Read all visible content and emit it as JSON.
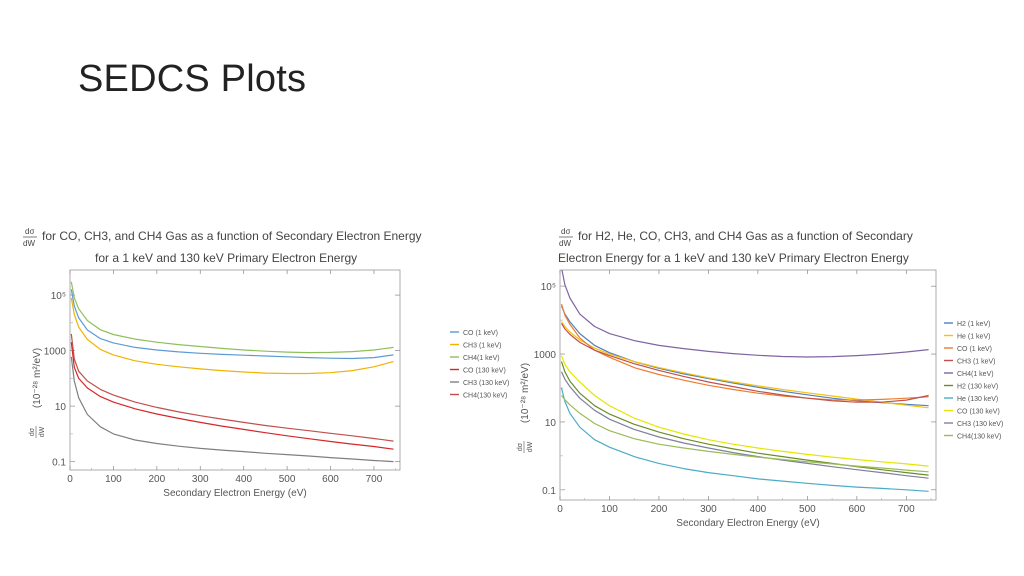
{
  "slide": {
    "title": "SEDCS Plots"
  },
  "chart_data": [
    {
      "type": "line",
      "title_fraction": {
        "numerator": "dσ",
        "denominator": "dW"
      },
      "title_line1": "for CO, CH3, and CH4 Gas as a function of Secondary Electron Energy",
      "title_line2": "for a 1 keV and 130 keV Primary Electron Energy",
      "xlabel": "Secondary Electron Energy (eV)",
      "ylabel_fraction": {
        "numerator": "dσ",
        "denominator": "dW"
      },
      "ylabel": "(10⁻²⁸ m²/eV)",
      "xlim": [
        0,
        760
      ],
      "ylim": [
        0.05,
        800000
      ],
      "yscale": "log",
      "xticks": [
        "0",
        "100",
        "200",
        "300",
        "400",
        "500",
        "600",
        "700"
      ],
      "yticks": [
        "0.1",
        "10",
        "1000",
        "10⁵"
      ],
      "ytick_values": [
        0.1,
        10,
        1000,
        100000
      ],
      "legend_position": "right",
      "x": [
        3,
        10,
        20,
        40,
        70,
        100,
        150,
        200,
        250,
        300,
        350,
        400,
        450,
        500,
        550,
        600,
        650,
        700,
        745
      ],
      "series": [
        {
          "name": "CO (1 keV)",
          "color": "#5b9bd5",
          "values": [
            160000,
            40000,
            15000,
            5500,
            2700,
            1900,
            1300,
            1050,
            900,
            800,
            730,
            680,
            640,
            600,
            560,
            530,
            520,
            560,
            700
          ]
        },
        {
          "name": "CH3 (1 keV)",
          "color": "#f0b400",
          "values": [
            80000,
            20000,
            7000,
            2500,
            1100,
            700,
            430,
            320,
            260,
            220,
            190,
            170,
            155,
            150,
            150,
            160,
            190,
            260,
            400
          ]
        },
        {
          "name": "CH4(1 keV)",
          "color": "#8fbf5a",
          "values": [
            300000,
            80000,
            32000,
            12000,
            5600,
            3800,
            2600,
            2000,
            1650,
            1400,
            1200,
            1050,
            950,
            880,
            850,
            860,
            920,
            1050,
            1300
          ]
        },
        {
          "name": "CO (130 keV)",
          "color": "#d62728",
          "values": [
            2000,
            250,
            100,
            45,
            22,
            14,
            8,
            5.2,
            3.6,
            2.6,
            1.9,
            1.45,
            1.1,
            0.85,
            0.67,
            0.53,
            0.43,
            0.35,
            0.28
          ]
        },
        {
          "name": "CH3 (130 keV)",
          "color": "#7f7f7f",
          "values": [
            600,
            80,
            20,
            5,
            1.8,
            1.0,
            0.6,
            0.45,
            0.36,
            0.3,
            0.26,
            0.23,
            0.2,
            0.18,
            0.16,
            0.14,
            0.125,
            0.11,
            0.1
          ]
        },
        {
          "name": "CH4(130 keV)",
          "color": "#c0504d",
          "values": [
            4000,
            500,
            180,
            80,
            40,
            25,
            14,
            9,
            6.2,
            4.5,
            3.4,
            2.6,
            2.0,
            1.6,
            1.3,
            1.05,
            0.85,
            0.68,
            0.55
          ]
        }
      ]
    },
    {
      "type": "line",
      "title_fraction": {
        "numerator": "dσ",
        "denominator": "dW"
      },
      "title_line1": "for H2, He, CO, CH3, and CH4 Gas as a function of Secondary",
      "title_line2": "Electron Energy for a 1 keV and 130 keV Primary Electron Energy",
      "xlabel": "Secondary Electron Energy (eV)",
      "ylabel_fraction": {
        "numerator": "dσ",
        "denominator": "dW"
      },
      "ylabel": "(10⁻²⁸ m²/eV)",
      "xlim": [
        0,
        760
      ],
      "ylim": [
        0.05,
        300000
      ],
      "yscale": "log",
      "xticks": [
        "0",
        "100",
        "200",
        "300",
        "400",
        "500",
        "600",
        "700"
      ],
      "yticks": [
        "0.1",
        "10",
        "1000",
        "10⁵"
      ],
      "ytick_values": [
        0.1,
        10,
        1000,
        100000
      ],
      "legend_position": "right",
      "x": [
        3,
        10,
        20,
        40,
        70,
        100,
        150,
        200,
        250,
        300,
        350,
        400,
        450,
        500,
        550,
        600,
        650,
        700,
        745
      ],
      "series": [
        {
          "name": "H2 (1 keV)",
          "color": "#4f81bd",
          "values": [
            26000,
            15000,
            9000,
            4000,
            1800,
            1100,
            600,
            380,
            260,
            190,
            140,
            105,
            80,
            63,
            50,
            42,
            37,
            33,
            30
          ]
        },
        {
          "name": "He (1 keV)",
          "color": "#f4c20d",
          "values": [
            9000,
            6500,
            4500,
            2600,
            1500,
            1000,
            600,
            400,
            280,
            200,
            150,
            115,
            90,
            72,
            58,
            47,
            38,
            31,
            26
          ]
        },
        {
          "name": "CO (1 keV)",
          "color": "#ed7d31",
          "values": [
            30000,
            14000,
            7500,
            3000,
            1300,
            800,
            400,
            250,
            170,
            120,
            90,
            70,
            58,
            50,
            45,
            44,
            46,
            50,
            55
          ]
        },
        {
          "name": "CH3 (1 keV)",
          "color": "#c0504d",
          "values": [
            8000,
            5500,
            3800,
            2200,
            1300,
            900,
            520,
            330,
            220,
            150,
            110,
            80,
            62,
            50,
            42,
            38,
            38,
            44,
            60
          ]
        },
        {
          "name": "CH4(1 keV)",
          "color": "#8064a2",
          "values": [
            350000,
            110000,
            45000,
            15000,
            6500,
            4000,
            2500,
            1800,
            1450,
            1200,
            1030,
            920,
            850,
            820,
            840,
            900,
            1000,
            1150,
            1350
          ]
        },
        {
          "name": "H2 (130 keV)",
          "color": "#6b8e23",
          "values": [
            600,
            300,
            160,
            70,
            30,
            17,
            8.5,
            5.0,
            3.2,
            2.2,
            1.6,
            1.2,
            0.95,
            0.75,
            0.6,
            0.48,
            0.39,
            0.32,
            0.27
          ]
        },
        {
          "name": "He (130 keV)",
          "color": "#4bacc6",
          "values": [
            100,
            40,
            18,
            7,
            3,
            1.8,
            0.95,
            0.6,
            0.42,
            0.32,
            0.26,
            0.21,
            0.18,
            0.155,
            0.135,
            0.12,
            0.11,
            0.1,
            0.09
          ]
        },
        {
          "name": "CO (130 keV)",
          "color": "#e6e600",
          "values": [
            900,
            500,
            300,
            150,
            60,
            30,
            13,
            7.0,
            4.4,
            3.0,
            2.2,
            1.7,
            1.35,
            1.1,
            0.92,
            0.78,
            0.67,
            0.58,
            0.5
          ]
        },
        {
          "name": "CH3 (130 keV)",
          "color": "#7f7f9f",
          "values": [
            300,
            180,
            110,
            50,
            22,
            12,
            6,
            3.6,
            2.4,
            1.7,
            1.25,
            0.95,
            0.75,
            0.6,
            0.48,
            0.39,
            0.32,
            0.26,
            0.22
          ]
        },
        {
          "name": "CH4(130 keV)",
          "color": "#9bbb59",
          "values": [
            60,
            45,
            32,
            18,
            9,
            5.5,
            3.2,
            2.2,
            1.7,
            1.35,
            1.1,
            0.92,
            0.78,
            0.67,
            0.58,
            0.5,
            0.44,
            0.38,
            0.34
          ]
        }
      ]
    }
  ]
}
